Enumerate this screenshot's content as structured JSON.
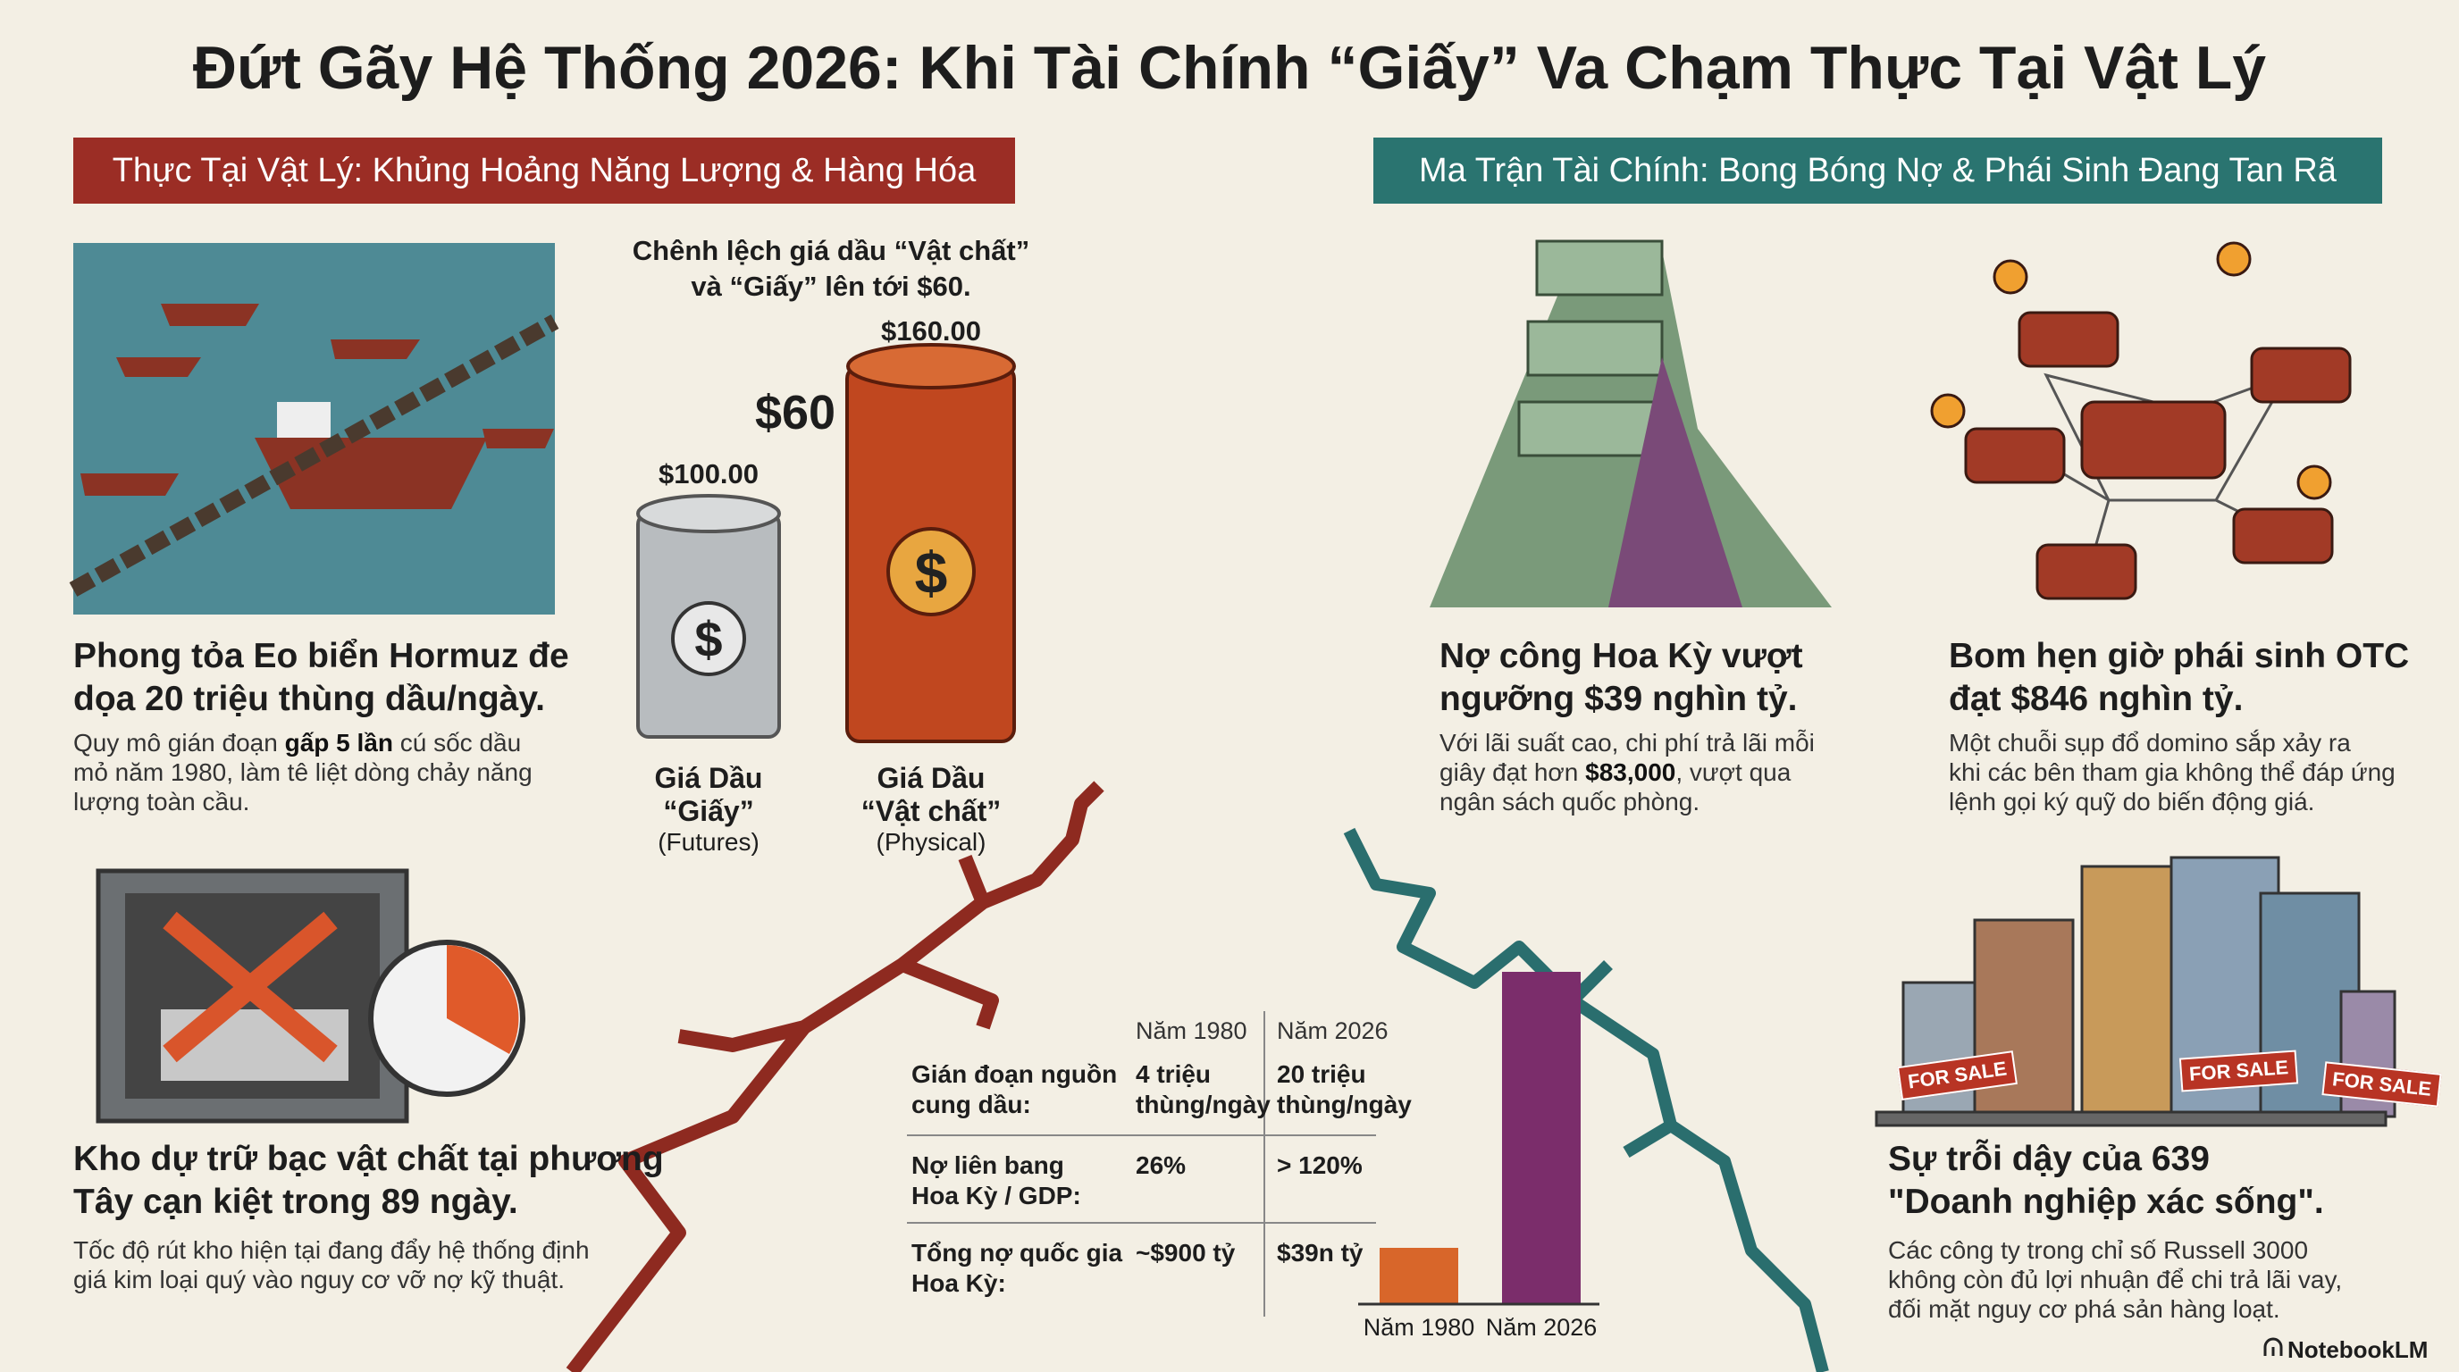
{
  "header": {
    "title": "Đứt Gãy Hệ Thống 2026: Khi Tài Chính “Giấy” Va Chạm Thực Tại Vật Lý"
  },
  "banners": [
    "Thực Tại Vật Lý: Khủng Hoảng Năng Lượng & Hàng Hóa",
    "Ma Trận Tài Chính: Bong Bóng Nợ & Phái Sinh Đang Tan Rã"
  ],
  "oil": {
    "caption": [
      "Chênh lệch giá dầu “Vật chất”",
      "và “Giấy” lên tới $60."
    ],
    "gap": "$60",
    "paper": {
      "price": "$100.00",
      "label": [
        "Giá Dầu",
        "“Giấy”"
      ],
      "sub": "(Futures)"
    },
    "physical": {
      "price": "$160.00",
      "label": [
        "Giá Dầu",
        "“Vật chất”"
      ],
      "sub": "(Physical)"
    }
  },
  "cards": [
    {
      "heading": [
        "Phong tỏa Eo biển Hormuz đe",
        "dọa 20 triệu thùng dầu/ngày."
      ],
      "body": [
        [
          "Quy mô gián đoạn ",
          "gấp 5 lần",
          " cú sốc dầu"
        ],
        [
          "mỏ năm 1980, làm tê liệt dòng chảy năng"
        ],
        [
          "lượng toàn cầu."
        ]
      ]
    },
    {
      "heading": [
        "Kho dự trữ bạc vật chất tại phương",
        "Tây cạn kiệt trong 89 ngày."
      ],
      "body": [
        [
          "Tốc độ rút kho hiện tại đang đẩy hệ thống định"
        ],
        [
          "giá kim loại quý vào nguy cơ vỡ nợ kỹ thuật."
        ]
      ]
    },
    {
      "heading": [
        "Nợ công Hoa Kỳ vượt",
        "ngưỡng $39 nghìn tỷ."
      ],
      "body": [
        [
          "Với lãi suất cao, chi phí trả lãi mỗi"
        ],
        [
          "giây đạt hơn ",
          "$83,000",
          ", vượt qua"
        ],
        [
          "ngân sách quốc phòng."
        ]
      ]
    },
    {
      "heading": [
        "Bom hẹn giờ phái sinh OTC",
        "đạt $846 nghìn tỷ."
      ],
      "body": [
        [
          "Một chuỗi sụp đổ domino sắp xảy ra"
        ],
        [
          "khi các bên tham gia không thể đáp ứng"
        ],
        [
          "lệnh gọi ký quỹ do biến động giá."
        ]
      ]
    },
    {
      "heading": [
        "Sự trỗi dậy của 639",
        "\"Doanh nghiệp xác sống\"."
      ],
      "body": [
        [
          "Các công ty trong chỉ số Russell 3000"
        ],
        [
          "không còn đủ lợi nhuận để chi trả lãi vay,"
        ],
        [
          "đối mặt nguy cơ phá sản hàng loạt."
        ]
      ]
    }
  ],
  "table": {
    "columns": [
      "Năm 1980",
      "Năm 2026"
    ],
    "rows": [
      [
        [
          "Gián đoạn nguồn",
          "cung dầu:"
        ],
        [
          "4 triệu",
          "thùng/ngày"
        ],
        [
          "20 triệu",
          "thùng/ngày"
        ]
      ],
      [
        [
          "Nợ liên bang",
          "Hoa Kỳ / GDP:"
        ],
        [
          "26%"
        ],
        [
          "> 120%"
        ]
      ],
      [
        [
          "Tổng nợ quốc gia",
          "Hoa Kỳ:"
        ],
        [
          "~$900 tỷ"
        ],
        [
          "$39n tỷ"
        ]
      ]
    ]
  },
  "bars": {
    "categories": [
      "Năm 1980",
      "Năm 2026"
    ]
  },
  "signs": [
    "FOR SALE",
    "FOR SALE",
    "FOR SALE"
  ],
  "footer": {
    "brand": "NotebookLM"
  }
}
